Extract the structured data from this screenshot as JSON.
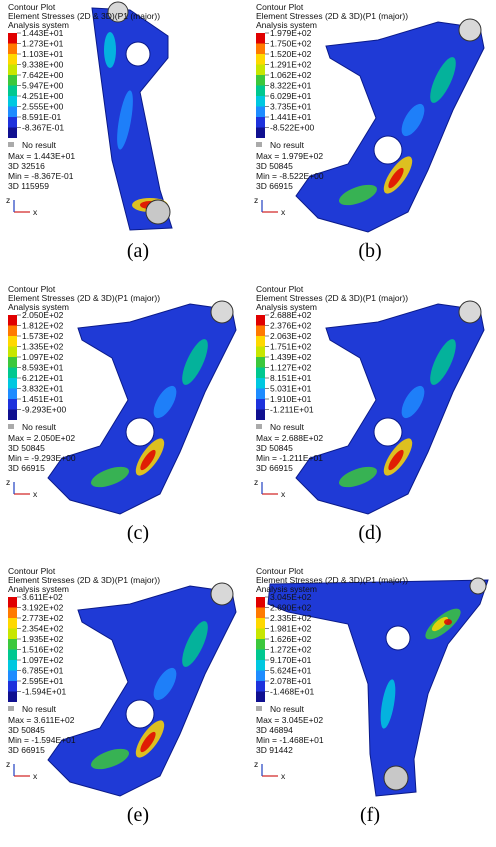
{
  "panels": [
    {
      "title": "Contour Plot",
      "subtitle": "Element Stresses (2D & 3D)(P1 (major))",
      "system": "Analysis system",
      "legend": [
        "1.443E+01",
        "1.273E+01",
        "1.103E+01",
        "9.338E+00",
        "7.642E+00",
        "5.947E+00",
        "4.251E+00",
        "2.555E+00",
        "8.591E-01",
        "-8.367E-01"
      ],
      "no_result": "No result",
      "max": "Max = 1.443E+01",
      "max_id": "3D 32516",
      "min": "Min = -8.367E-01",
      "min_id": "3D 115959",
      "axis_z": "z",
      "axis_x": "x",
      "caption": "(a)"
    },
    {
      "title": "Contour Plot",
      "subtitle": "Element Stresses (2D & 3D)(P1 (major))",
      "system": "Analysis system",
      "legend": [
        "1.979E+02",
        "1.750E+02",
        "1.520E+02",
        "1.291E+02",
        "1.062E+02",
        "8.322E+01",
        "6.029E+01",
        "3.735E+01",
        "1.441E+01",
        "-8.522E+00"
      ],
      "no_result": "No result",
      "max": "Max = 1.979E+02",
      "max_id": "3D 50845",
      "min": "Min = -8.522E+00",
      "min_id": "3D 66915",
      "axis_z": "z",
      "axis_x": "x",
      "caption": "(b)"
    },
    {
      "title": "Contour Plot",
      "subtitle": "Element Stresses (2D & 3D)(P1 (major))",
      "system": "Analysis system",
      "legend": [
        "2.050E+02",
        "1.812E+02",
        "1.573E+02",
        "1.335E+02",
        "1.097E+02",
        "8.593E+01",
        "6.212E+01",
        "3.832E+01",
        "1.451E+01",
        "-9.293E+00"
      ],
      "no_result": "No result",
      "max": "Max = 2.050E+02",
      "max_id": "3D 50845",
      "min": "Min = -9.293E+00",
      "min_id": "3D 66915",
      "axis_z": "z",
      "axis_x": "x",
      "caption": "(c)"
    },
    {
      "title": "Contour Plot",
      "subtitle": "Element Stresses (2D & 3D)(P1 (major))",
      "system": "Analysis system",
      "legend": [
        "2.688E+02",
        "2.376E+02",
        "2.063E+02",
        "1.751E+02",
        "1.439E+02",
        "1.127E+02",
        "8.151E+01",
        "5.031E+01",
        "1.910E+01",
        "-1.211E+01"
      ],
      "no_result": "No result",
      "max": "Max = 2.688E+02",
      "max_id": "3D 50845",
      "min": "Min = -1.211E+01",
      "min_id": "3D 66915",
      "axis_z": "z",
      "axis_x": "x",
      "caption": "(d)"
    },
    {
      "title": "Contour Plot",
      "subtitle": "Element Stresses (2D & 3D)(P1 (major))",
      "system": "Analysis system",
      "legend": [
        "3.611E+02",
        "3.192E+02",
        "2.773E+02",
        "2.354E+02",
        "1.935E+02",
        "1.516E+02",
        "1.097E+02",
        "6.785E+01",
        "2.595E+01",
        "-1.594E+01"
      ],
      "no_result": "No result",
      "max": "Max = 3.611E+02",
      "max_id": "3D 50845",
      "min": "Min = -1.594E+01",
      "min_id": "3D 66915",
      "axis_z": "z",
      "axis_x": "x",
      "caption": "(e)"
    },
    {
      "title": "Contour Plot",
      "subtitle": "Element Stresses (2D & 3D)(P1 (major))",
      "system": "Analysis system",
      "legend": [
        "3.045E+02",
        "2.690E+02",
        "2.335E+02",
        "1.981E+02",
        "1.626E+02",
        "1.272E+02",
        "9.170E+01",
        "5.624E+01",
        "2.078E+01",
        "-1.468E+01"
      ],
      "no_result": "No result",
      "max": "Max = 3.045E+02",
      "max_id": "3D 46894",
      "min": "Min = -1.468E+01",
      "min_id": "3D 91442",
      "axis_z": "z",
      "axis_x": "x",
      "caption": "(f)"
    }
  ]
}
